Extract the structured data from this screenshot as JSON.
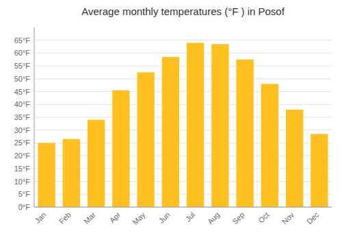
{
  "chart_data": {
    "type": "bar",
    "title": "Average monthly temperatures (°F ) in Posof",
    "categories": [
      "Jan",
      "Feb",
      "Mar",
      "Apr",
      "May",
      "Jun",
      "Jul",
      "Aug",
      "Sep",
      "Oct",
      "Nov",
      "Dec"
    ],
    "values": [
      25,
      26.5,
      34,
      45.5,
      52.5,
      58.5,
      64,
      63.5,
      57.5,
      48,
      38,
      28.5
    ],
    "color": "#FFC020",
    "ylim": [
      0,
      70
    ],
    "yticks": [
      {
        "value": 0,
        "label": "0°F"
      },
      {
        "value": 5,
        "label": "5°F"
      },
      {
        "value": 10,
        "label": "10°F"
      },
      {
        "value": 15,
        "label": "15°F"
      },
      {
        "value": 20,
        "label": "20°F"
      },
      {
        "value": 25,
        "label": "25°F"
      },
      {
        "value": 30,
        "label": "30°F"
      },
      {
        "value": 35,
        "label": "35°F"
      },
      {
        "value": 40,
        "label": "40°F"
      },
      {
        "value": 45,
        "label": "45°F"
      },
      {
        "value": 50,
        "label": "50°F"
      },
      {
        "value": 55,
        "label": "55°F"
      },
      {
        "value": 60,
        "label": "60°F"
      },
      {
        "value": 65,
        "label": "65°F"
      }
    ],
    "grid": true
  }
}
